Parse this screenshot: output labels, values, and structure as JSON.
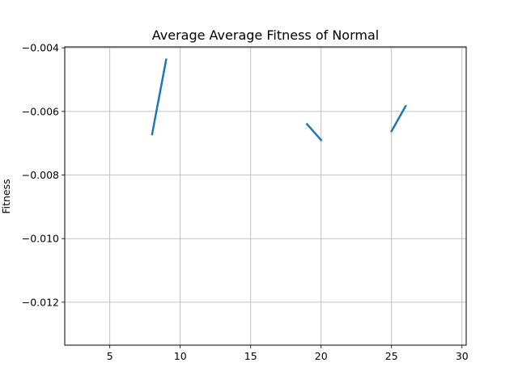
{
  "chart_data": {
    "type": "line",
    "title": "Average Average Fitness of Normal",
    "xlabel": "",
    "ylabel": "Fitness",
    "xlim": [
      1.8,
      30.3
    ],
    "ylim": [
      -0.01335,
      -0.00397
    ],
    "xticks": [
      5,
      10,
      15,
      20,
      25,
      30
    ],
    "xtick_labels": [
      "5",
      "10",
      "15",
      "20",
      "25",
      "30"
    ],
    "yticks": [
      -0.004,
      -0.006,
      -0.008,
      -0.01,
      -0.012
    ],
    "ytick_labels": [
      "−0.004",
      "−0.006",
      "−0.008",
      "−0.010",
      "−0.012"
    ],
    "grid": true,
    "series": [
      {
        "color": "#1f77b4",
        "segments": [
          [
            [
              8,
              -0.00672
            ],
            [
              9,
              -0.00437
            ]
          ],
          [
            [
              19,
              -0.0064
            ],
            [
              20,
              -0.0069
            ]
          ],
          [
            [
              25,
              -0.00662
            ],
            [
              26,
              -0.00583
            ]
          ]
        ]
      }
    ]
  }
}
